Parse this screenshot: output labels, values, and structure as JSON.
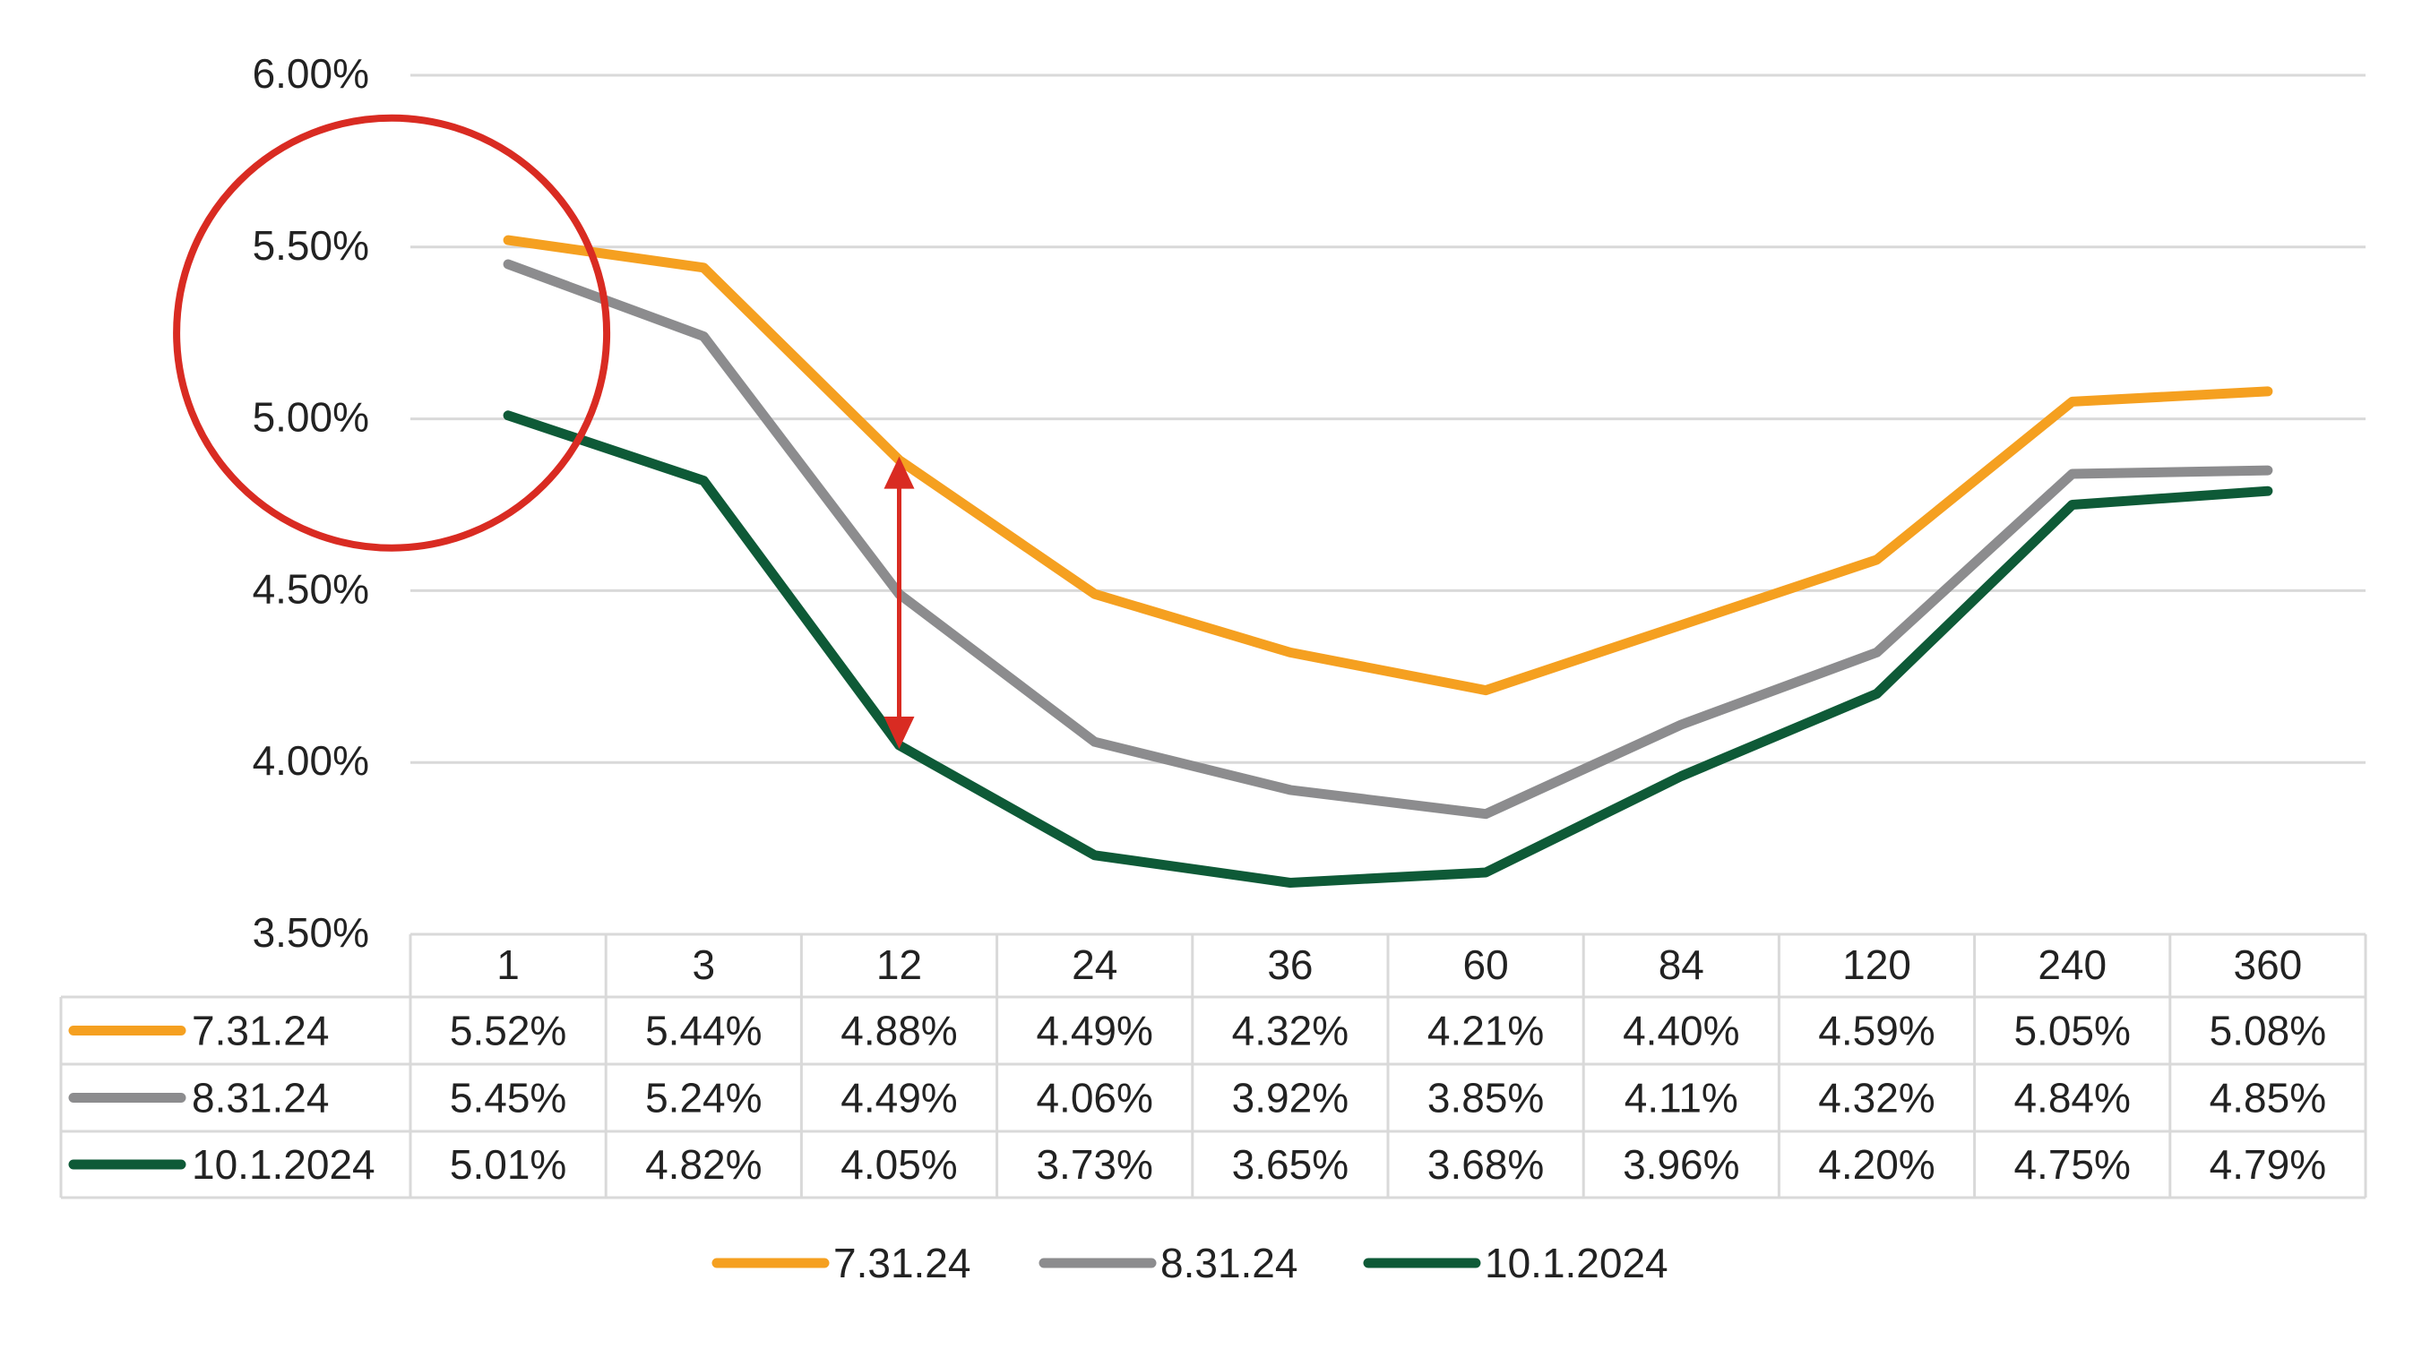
{
  "chart_data": {
    "type": "line",
    "categories": [
      "1",
      "3",
      "12",
      "24",
      "36",
      "60",
      "84",
      "120",
      "240",
      "360"
    ],
    "series": [
      {
        "name": "7.31.24",
        "color": "#F5A020",
        "values": [
          5.52,
          5.44,
          4.88,
          4.49,
          4.32,
          4.21,
          4.4,
          4.59,
          5.05,
          5.08
        ],
        "labels": [
          "5.52%",
          "5.44%",
          "4.88%",
          "4.49%",
          "4.32%",
          "4.21%",
          "4.40%",
          "4.59%",
          "5.05%",
          "5.08%"
        ]
      },
      {
        "name": "8.31.24",
        "color": "#8C8C8E",
        "values": [
          5.45,
          5.24,
          4.49,
          4.06,
          3.92,
          3.85,
          4.11,
          4.32,
          4.84,
          4.85
        ],
        "labels": [
          "5.45%",
          "5.24%",
          "4.49%",
          "4.06%",
          "3.92%",
          "3.85%",
          "4.11%",
          "4.32%",
          "4.84%",
          "4.85%"
        ]
      },
      {
        "name": "10.1.2024",
        "color": "#0E5A37",
        "values": [
          5.01,
          4.82,
          4.05,
          3.73,
          3.65,
          3.68,
          3.96,
          4.2,
          4.75,
          4.79
        ],
        "labels": [
          "5.01%",
          "4.82%",
          "4.05%",
          "3.73%",
          "3.65%",
          "3.68%",
          "3.96%",
          "4.20%",
          "4.75%",
          "4.79%"
        ]
      }
    ],
    "ylim": [
      3.5,
      6.0
    ],
    "yticks": [
      3.5,
      4.0,
      4.5,
      5.0,
      5.5,
      6.0
    ],
    "ytick_labels": [
      "3.50%",
      "4.00%",
      "4.50%",
      "5.00%",
      "5.50%",
      "6.00%"
    ],
    "grid": true,
    "legend_position": "bottom",
    "data_table": true,
    "annotations": [
      {
        "type": "circle",
        "category": "1",
        "value": 5.25,
        "color": "#D92B22"
      },
      {
        "type": "double-arrow",
        "category": "12",
        "from": 4.88,
        "to": 4.05,
        "color": "#D92B22"
      }
    ]
  }
}
